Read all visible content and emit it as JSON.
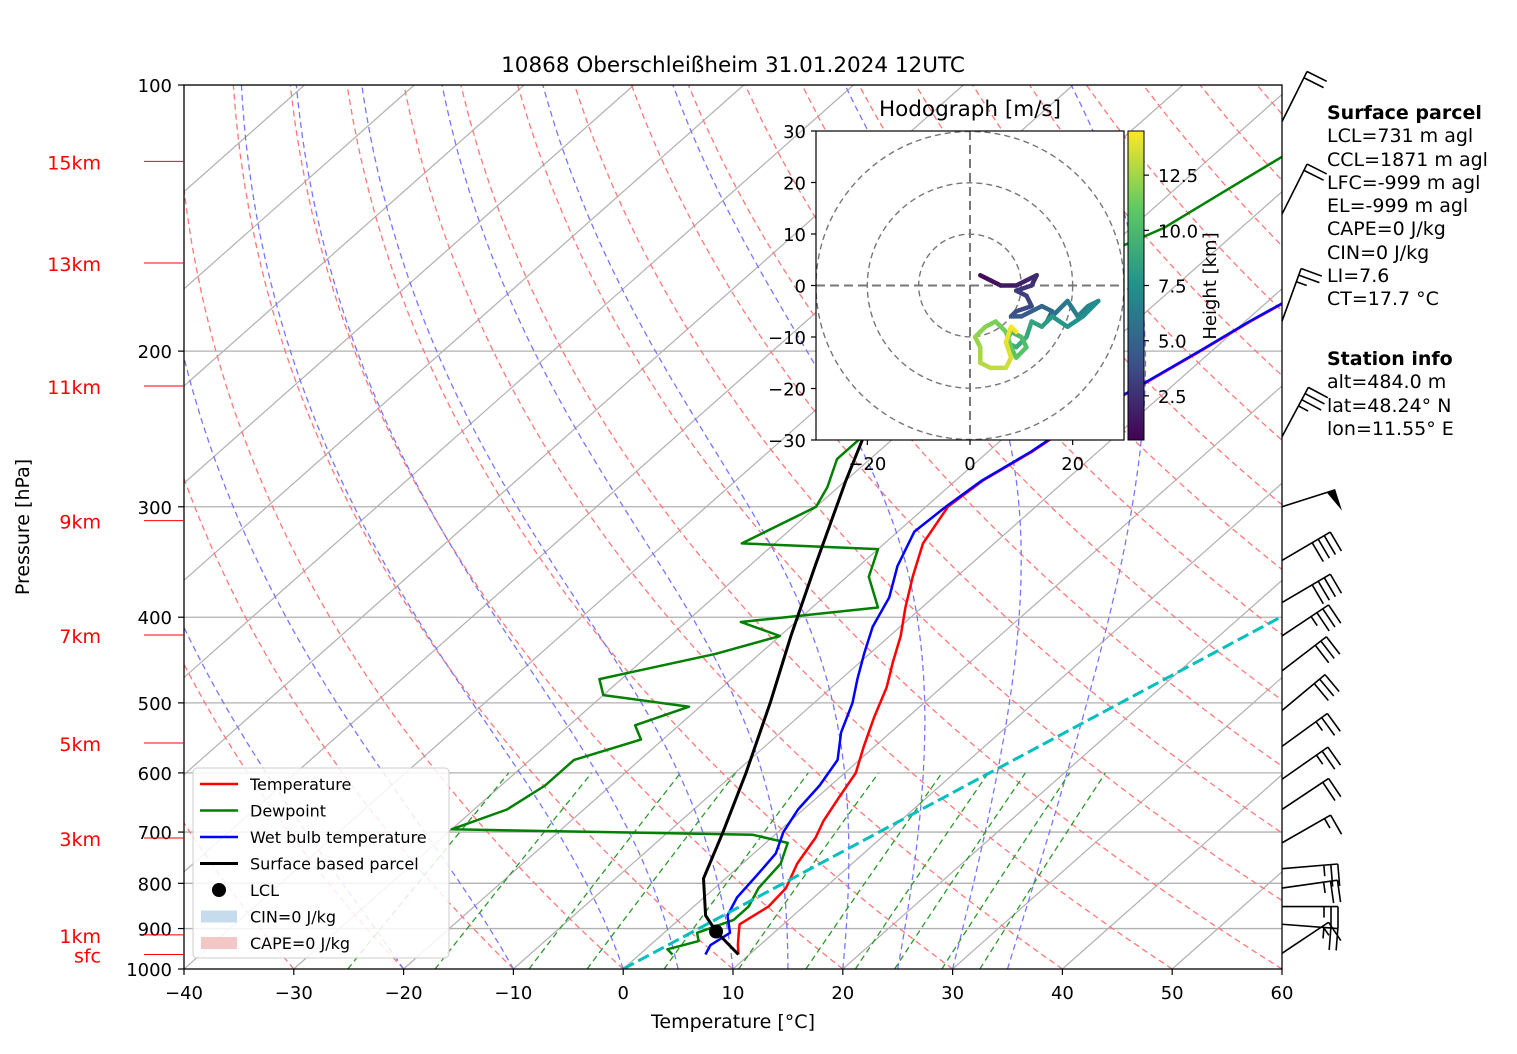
{
  "chart_data": {
    "type": "skew-t log-p",
    "title": "10868 Oberschleißheim 31.01.2024 12UTC",
    "xlabel": "Temperature [°C]",
    "ylabel": "Pressure [hPa]",
    "xlim": [
      -40,
      60
    ],
    "ylim": [
      1000,
      100
    ],
    "x_ticks": [
      "−40",
      "−30",
      "−20",
      "−10",
      "0",
      "10",
      "20",
      "30",
      "40",
      "50",
      "60"
    ],
    "y_ticks": [
      {
        "p": 100,
        "label": "100"
      },
      {
        "p": 200,
        "label": "200"
      },
      {
        "p": 300,
        "label": "300"
      },
      {
        "p": 400,
        "label": "400"
      },
      {
        "p": 500,
        "label": "500"
      },
      {
        "p": 600,
        "label": "600"
      },
      {
        "p": 700,
        "label": "700"
      },
      {
        "p": 800,
        "label": "800"
      },
      {
        "p": 900,
        "label": "900"
      },
      {
        "p": 1000,
        "label": "1000"
      }
    ],
    "height_labels": [
      {
        "label": "15km",
        "p": 122
      },
      {
        "label": "13km",
        "p": 159
      },
      {
        "label": "11km",
        "p": 219
      },
      {
        "label": "9km",
        "p": 311
      },
      {
        "label": "7km",
        "p": 419
      },
      {
        "label": "5km",
        "p": 555
      },
      {
        "label": "3km",
        "p": 711
      },
      {
        "label": "1km",
        "p": 915
      },
      {
        "label": "sfc",
        "p": 963
      }
    ],
    "grid": true,
    "legend_position": "bottom-left",
    "series": [
      {
        "name": "Temperature",
        "color": "#ff0000",
        "points": [
          [
            9.0,
            963
          ],
          [
            8.0,
            940
          ],
          [
            7.0,
            915
          ],
          [
            6.0,
            890
          ],
          [
            6.8,
            850
          ],
          [
            6.5,
            810
          ],
          [
            5.0,
            760
          ],
          [
            4.0,
            710
          ],
          [
            3.0,
            680
          ],
          [
            2.0,
            640
          ],
          [
            1.0,
            600
          ],
          [
            -1.0,
            560
          ],
          [
            -3.0,
            520
          ],
          [
            -5.0,
            480
          ],
          [
            -7.0,
            450
          ],
          [
            -9.0,
            420
          ],
          [
            -11.5,
            390
          ],
          [
            -14.0,
            360
          ],
          [
            -16.5,
            330
          ],
          [
            -18.0,
            300
          ],
          [
            -17.5,
            280
          ],
          [
            -16.0,
            260
          ],
          [
            -15.0,
            240
          ],
          [
            -13.0,
            220
          ],
          [
            -11.0,
            200
          ],
          [
            -9.5,
            185
          ],
          [
            -7.5,
            170
          ],
          [
            -5.0,
            155
          ],
          [
            -3.0,
            145
          ],
          [
            -1.5,
            135
          ],
          [
            -0.5,
            125
          ],
          [
            1.0,
            120
          ]
        ]
      },
      {
        "name": "Dewpoint",
        "color": "#008000",
        "points": [
          [
            3.0,
            963
          ],
          [
            2.0,
            950
          ],
          [
            4.0,
            930
          ],
          [
            3.0,
            910
          ],
          [
            5.0,
            880
          ],
          [
            5.0,
            850
          ],
          [
            4.0,
            810
          ],
          [
            3.5,
            760
          ],
          [
            2.0,
            720
          ],
          [
            -2.0,
            705
          ],
          [
            -30.0,
            695
          ],
          [
            -27.0,
            660
          ],
          [
            -26.0,
            620
          ],
          [
            -26.0,
            580
          ],
          [
            -22.0,
            550
          ],
          [
            -24.0,
            530
          ],
          [
            -21.0,
            505
          ],
          [
            -30.0,
            490
          ],
          [
            -32.0,
            470
          ],
          [
            -24.0,
            440
          ],
          [
            -20.0,
            420
          ],
          [
            -25.0,
            405
          ],
          [
            -14.0,
            390
          ],
          [
            -18.0,
            360
          ],
          [
            -20.0,
            335
          ],
          [
            -33.0,
            330
          ],
          [
            -30.0,
            300
          ],
          [
            -31.0,
            285
          ],
          [
            -33.0,
            265
          ],
          [
            -33.0,
            240
          ],
          [
            -34.0,
            220
          ],
          [
            -34.0,
            200
          ],
          [
            -33.5,
            180
          ],
          [
            -31.0,
            160
          ],
          [
            -27.0,
            145
          ],
          [
            -25.0,
            130
          ],
          [
            -23.5,
            120
          ]
        ]
      },
      {
        "name": "Wet bulb temperature",
        "color": "#0000ff",
        "points": [
          [
            6.0,
            963
          ],
          [
            5.5,
            940
          ],
          [
            6.0,
            910
          ],
          [
            4.0,
            870
          ],
          [
            3.0,
            830
          ],
          [
            2.5,
            780
          ],
          [
            2.0,
            740
          ],
          [
            0.5,
            700
          ],
          [
            -0.5,
            660
          ],
          [
            -1.0,
            620
          ],
          [
            -2.0,
            580
          ],
          [
            -4.5,
            540
          ],
          [
            -6.5,
            500
          ],
          [
            -8.5,
            470
          ],
          [
            -10.5,
            440
          ],
          [
            -12.5,
            410
          ],
          [
            -14.0,
            380
          ],
          [
            -16.5,
            350
          ],
          [
            -18.5,
            320
          ],
          [
            -18.2,
            300
          ],
          [
            -17.6,
            280
          ],
          [
            -16.1,
            260
          ],
          [
            -15.1,
            240
          ],
          [
            -13.1,
            220
          ],
          [
            -11.1,
            200
          ],
          [
            -9.6,
            185
          ],
          [
            -7.6,
            170
          ],
          [
            -5.1,
            155
          ],
          [
            -3.1,
            145
          ],
          [
            -1.6,
            135
          ],
          [
            -0.6,
            125
          ],
          [
            0.9,
            120
          ]
        ]
      },
      {
        "name": "Surface based parcel",
        "color": "#000000",
        "points": [
          [
            9.0,
            963
          ],
          [
            4.6,
            907
          ],
          [
            2.0,
            870
          ],
          [
            -2.0,
            790
          ],
          [
            -5.0,
            700
          ],
          [
            -9.0,
            600
          ],
          [
            -14.0,
            500
          ],
          [
            -19.0,
            420
          ],
          [
            -24.0,
            350
          ],
          [
            -30.0,
            280
          ],
          [
            -35.0,
            230
          ],
          [
            -40.0,
            190
          ],
          [
            -43.0,
            170
          ]
        ]
      },
      {
        "name": "CCL temperature line",
        "color": "#00bfbf",
        "points": [
          [
            0.0,
            1000
          ],
          [
            57.0,
            110
          ]
        ]
      }
    ],
    "lcl": {
      "name": "LCL",
      "t": 4.6,
      "p": 907
    },
    "legend": [
      "Temperature",
      "Dewpoint",
      "Wet bulb temperature",
      "Surface based parcel",
      "LCL",
      "CIN=0 J/kg",
      "CAPE=0 J/kg"
    ],
    "wind_barbs": [
      {
        "p": 110,
        "u": -5,
        "v": -10
      },
      {
        "p": 140,
        "u": -5,
        "v": -10
      },
      {
        "p": 185,
        "u": -4,
        "v": -11
      },
      {
        "p": 250,
        "u": -8,
        "v": -15
      },
      {
        "p": 300,
        "u": -25,
        "v": -8
      },
      {
        "p": 345,
        "u": -17,
        "v": -10
      },
      {
        "p": 385,
        "u": -17,
        "v": -10
      },
      {
        "p": 420,
        "u": -15,
        "v": -10
      },
      {
        "p": 460,
        "u": -13,
        "v": -10
      },
      {
        "p": 510,
        "u": -12,
        "v": -10
      },
      {
        "p": 560,
        "u": -11,
        "v": -8
      },
      {
        "p": 610,
        "u": -10,
        "v": -7
      },
      {
        "p": 660,
        "u": -9,
        "v": -6
      },
      {
        "p": 720,
        "u": -7,
        "v": -4
      },
      {
        "p": 770,
        "u": -12,
        "v": -1
      },
      {
        "p": 810,
        "u": -14,
        "v": -2
      },
      {
        "p": 850,
        "u": -12,
        "v": 0
      },
      {
        "p": 890,
        "u": -13,
        "v": 1
      },
      {
        "p": 960,
        "u": -6,
        "v": -4
      }
    ],
    "hodograph": {
      "title": "Hodograph [m/s]",
      "xlim": [
        -30,
        30
      ],
      "ylim": [
        -30,
        30
      ],
      "x_ticks": [
        "−20",
        "0",
        "20"
      ],
      "y_ticks": [
        "30",
        "20",
        "10",
        "0",
        "−10",
        "−20",
        "−30"
      ],
      "rings": [
        10,
        20,
        30
      ],
      "colorbar_label": "Height [km]",
      "colorbar_ticks": [
        "2.5",
        "5.0",
        "7.5",
        "10.0",
        "12.5"
      ],
      "colorbar_range": [
        0.5,
        14.5
      ],
      "points": [
        {
          "u": 2,
          "v": 2,
          "h": 0.5
        },
        {
          "u": 4,
          "v": 1,
          "h": 0.9
        },
        {
          "u": 6,
          "v": 0,
          "h": 1.2
        },
        {
          "u": 9,
          "v": 0,
          "h": 1.5
        },
        {
          "u": 11,
          "v": 1,
          "h": 1.8
        },
        {
          "u": 13,
          "v": 2,
          "h": 2.1
        },
        {
          "u": 12,
          "v": 0,
          "h": 2.4
        },
        {
          "u": 9,
          "v": -1,
          "h": 2.7
        },
        {
          "u": 11,
          "v": -2,
          "h": 3.0
        },
        {
          "u": 12,
          "v": -4,
          "h": 3.3
        },
        {
          "u": 9,
          "v": -5,
          "h": 3.6
        },
        {
          "u": 8,
          "v": -6,
          "h": 3.9
        },
        {
          "u": 10,
          "v": -6,
          "h": 4.2
        },
        {
          "u": 12,
          "v": -5,
          "h": 4.5
        },
        {
          "u": 14,
          "v": -4,
          "h": 4.8
        },
        {
          "u": 16,
          "v": -5,
          "h": 5.1
        },
        {
          "u": 15,
          "v": -7,
          "h": 5.4
        },
        {
          "u": 17,
          "v": -5,
          "h": 5.7
        },
        {
          "u": 19,
          "v": -3,
          "h": 6.0
        },
        {
          "u": 21,
          "v": -6,
          "h": 6.3
        },
        {
          "u": 23,
          "v": -4,
          "h": 6.6
        },
        {
          "u": 25,
          "v": -3,
          "h": 6.9
        },
        {
          "u": 22,
          "v": -6,
          "h": 7.2
        },
        {
          "u": 19,
          "v": -8,
          "h": 7.5
        },
        {
          "u": 16,
          "v": -6,
          "h": 7.8
        },
        {
          "u": 14,
          "v": -8,
          "h": 8.1
        },
        {
          "u": 12,
          "v": -7,
          "h": 8.4
        },
        {
          "u": 11,
          "v": -10,
          "h": 8.7
        },
        {
          "u": 9,
          "v": -12,
          "h": 9.0
        },
        {
          "u": 7,
          "v": -11,
          "h": 9.3
        },
        {
          "u": 8,
          "v": -9,
          "h": 9.6
        },
        {
          "u": 10,
          "v": -10,
          "h": 9.9
        },
        {
          "u": 11,
          "v": -12,
          "h": 10.2
        },
        {
          "u": 9,
          "v": -14,
          "h": 10.5
        },
        {
          "u": 8,
          "v": -12,
          "h": 10.8
        },
        {
          "u": 7,
          "v": -9,
          "h": 11.1
        },
        {
          "u": 5,
          "v": -7,
          "h": 11.4
        },
        {
          "u": 3,
          "v": -8,
          "h": 11.7
        },
        {
          "u": 1,
          "v": -10,
          "h": 12.0
        },
        {
          "u": 2,
          "v": -12,
          "h": 12.3
        },
        {
          "u": 2,
          "v": -15,
          "h": 12.6
        },
        {
          "u": 4,
          "v": -16,
          "h": 12.9
        },
        {
          "u": 7,
          "v": -16,
          "h": 13.2
        },
        {
          "u": 8,
          "v": -14,
          "h": 13.5
        },
        {
          "u": 7,
          "v": -11,
          "h": 13.8
        },
        {
          "u": 8,
          "v": -8,
          "h": 14.1
        },
        {
          "u": 9,
          "v": -9,
          "h": 14.4
        }
      ]
    }
  },
  "surface_parcel": {
    "title": "Surface parcel",
    "lines": [
      "LCL=731 m agl",
      "CCL=1871 m agl",
      "LFC=-999 m agl",
      "EL=-999 m agl",
      "CAPE=0 J/kg",
      "CIN=0 J/kg",
      "LI=7.6",
      "CT=17.7 °C"
    ]
  },
  "station_info": {
    "title": "Station info",
    "lines": [
      "alt=484.0 m",
      "lat=48.24° N",
      "lon=11.55° E"
    ]
  },
  "colors": {
    "temperature": "#ff0000",
    "dewpoint": "#008000",
    "wetbulb": "#0000ff",
    "parcel": "#000000",
    "ccl_line": "#00bfbf",
    "dry_adiabats": "#ff7777",
    "moist_adiabats": "#7777ff",
    "mixing_ratio": "#2a9a2a",
    "isotherms": "#b0b0b0",
    "height_labels": "#ff0000",
    "cin_patch": "#c6dcec",
    "cape_patch": "#f4c7c7"
  }
}
